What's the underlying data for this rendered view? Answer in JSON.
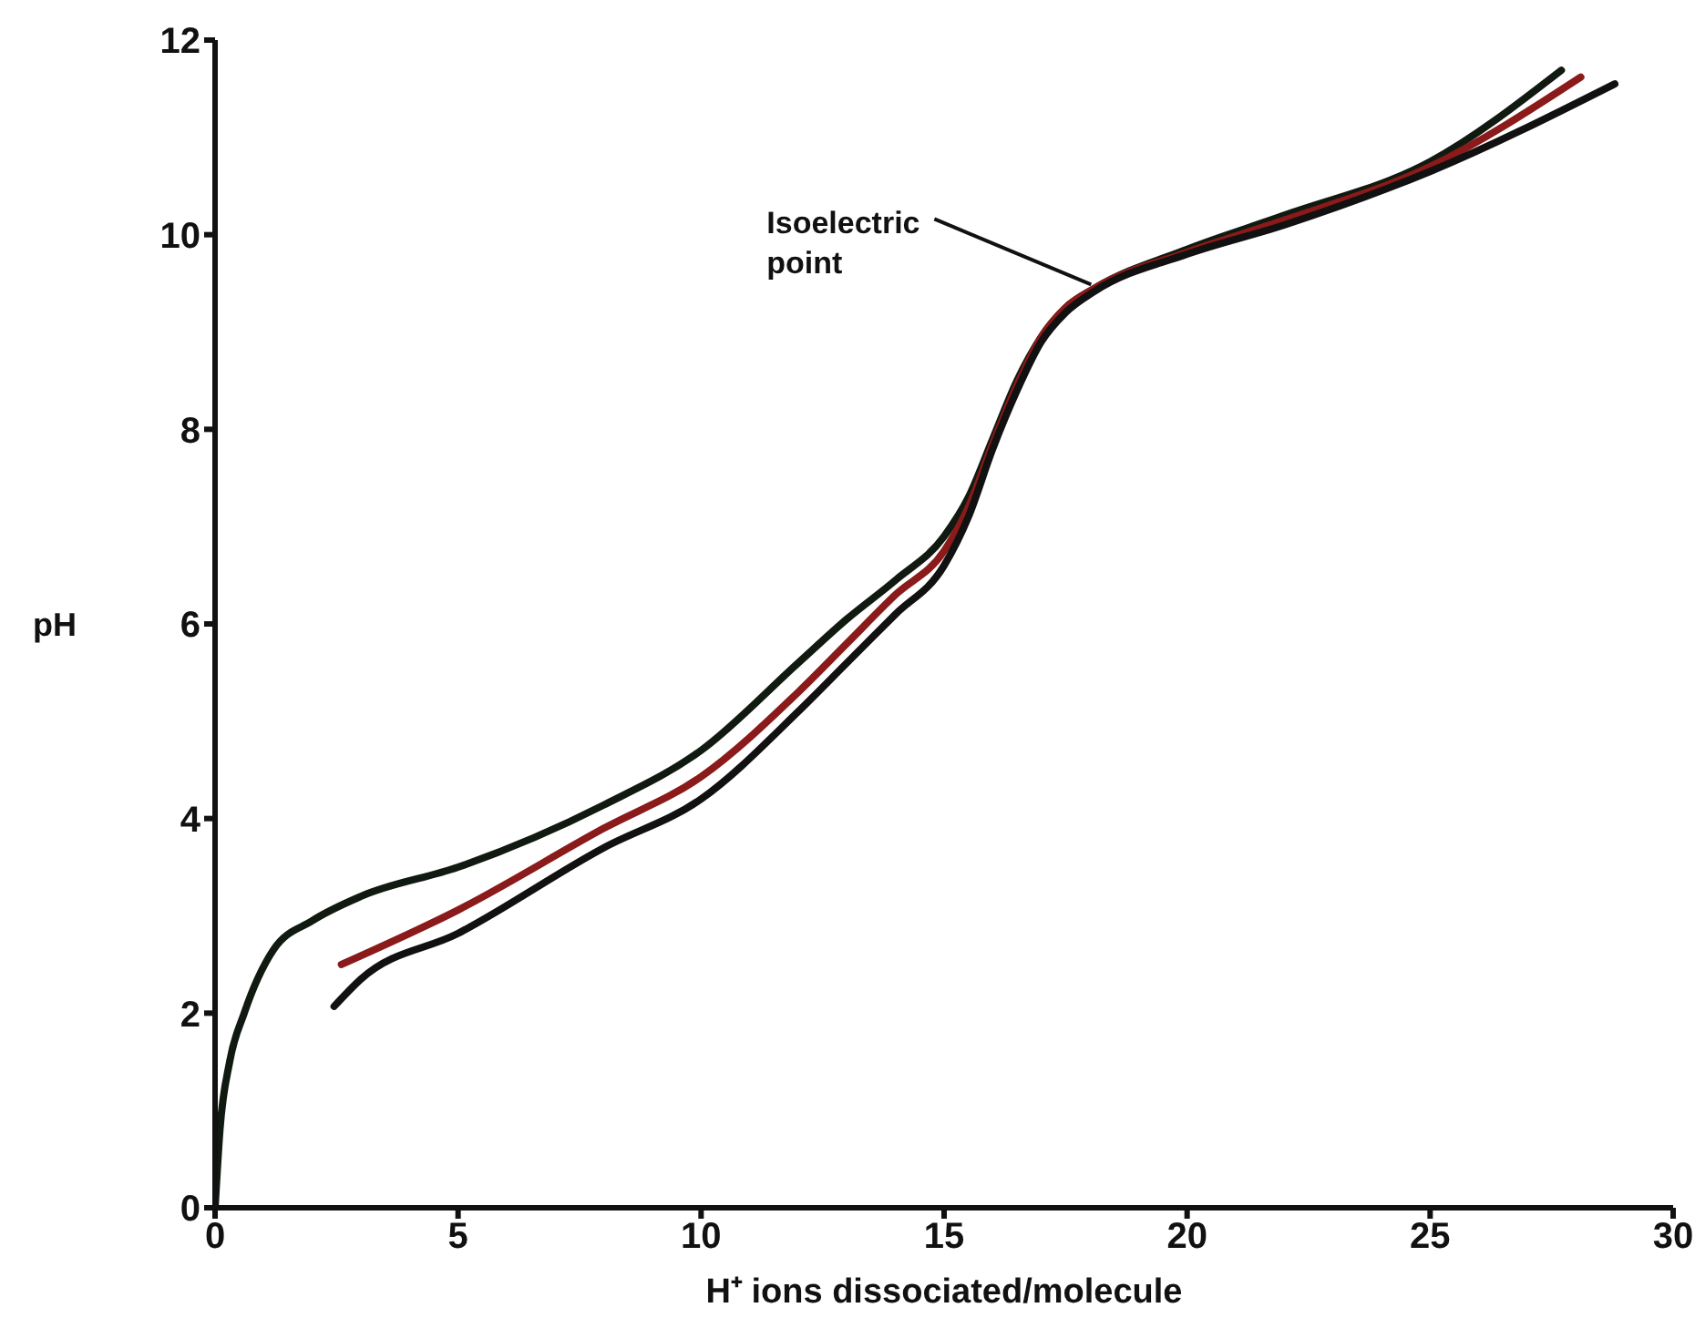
{
  "chart_data": {
    "type": "line",
    "xlabel": "H⁺ ions dissociated/molecule",
    "ylabel": "pH",
    "xlim": [
      0,
      30
    ],
    "xticks": [
      0,
      5,
      10,
      15,
      20,
      25,
      30
    ],
    "ylim": [
      0,
      12
    ],
    "yticks": [
      0,
      2,
      4,
      6,
      8,
      10,
      12
    ],
    "series": [
      {
        "color": "#111a11",
        "x": [
          0,
          0.1,
          0.3,
          0.6,
          1.2,
          2,
          3,
          5,
          8,
          10,
          12,
          13,
          14,
          15,
          15.5,
          16,
          16.5,
          17,
          17.5,
          18.1,
          20,
          22,
          25,
          27.7
        ],
        "values": [
          0,
          0.8,
          1.5,
          2.0,
          2.65,
          2.95,
          3.2,
          3.5,
          4.14,
          4.7,
          5.6,
          6.05,
          6.45,
          6.9,
          7.3,
          7.9,
          8.5,
          8.95,
          9.25,
          9.45,
          9.85,
          10.2,
          10.75,
          11.69
        ]
      },
      {
        "color": "#8b1a1a",
        "x": [
          2.6,
          5,
          8,
          10,
          12,
          13,
          14,
          15,
          15.5,
          16,
          16.5,
          17,
          17.5,
          18.1,
          20,
          22,
          25,
          28.1
        ],
        "values": [
          2.5,
          3.06,
          3.9,
          4.43,
          5.3,
          5.8,
          6.3,
          6.75,
          7.2,
          7.85,
          8.45,
          8.95,
          9.25,
          9.45,
          9.82,
          10.15,
          10.7,
          11.62
        ]
      },
      {
        "color": "#111111",
        "x": [
          2.45,
          3,
          5,
          8,
          10,
          12,
          13,
          14,
          15,
          15.5,
          16,
          16.5,
          17,
          17.5,
          18.1,
          20,
          22,
          25,
          28.8
        ],
        "values": [
          2.07,
          2.35,
          2.82,
          3.7,
          4.2,
          5.1,
          5.6,
          6.1,
          6.6,
          7.1,
          7.8,
          8.4,
          8.9,
          9.2,
          9.42,
          9.8,
          10.1,
          10.65,
          11.55
        ]
      }
    ],
    "annotations": [
      {
        "text": "Isoelectric point",
        "x": 18.1,
        "y": 9.45
      }
    ]
  }
}
